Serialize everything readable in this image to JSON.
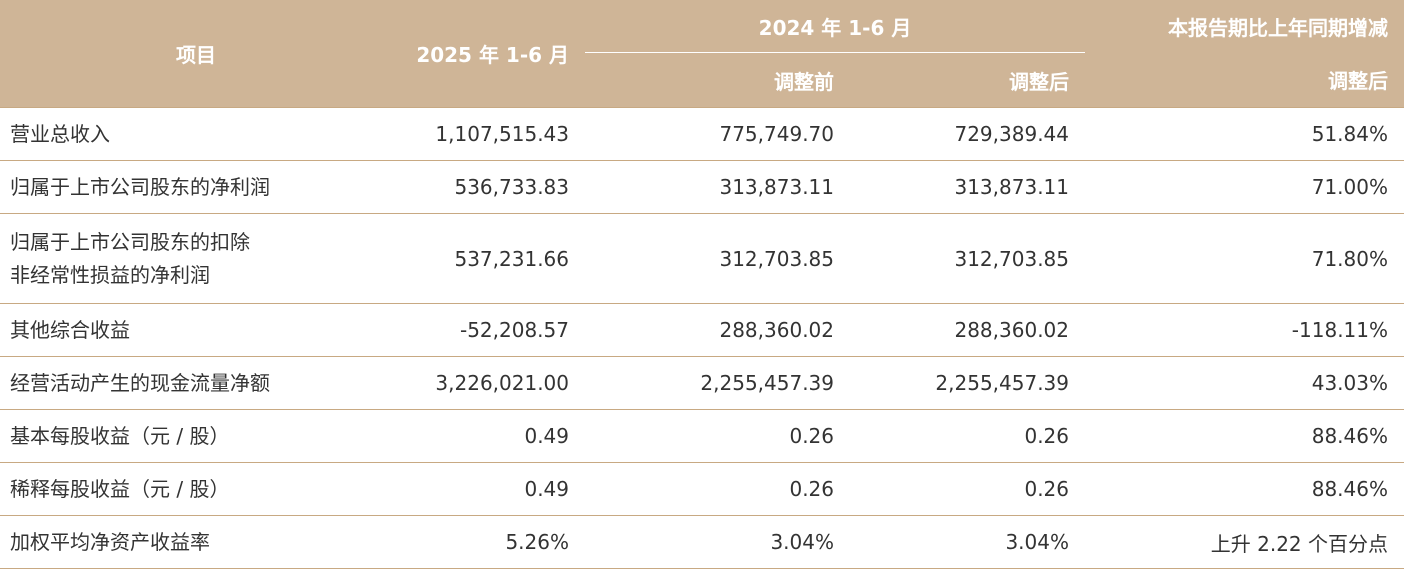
{
  "header": {
    "item": "项目",
    "col_2025": "2025 年 1-6 月",
    "col_2024": "2024 年 1-6 月",
    "col_change": "本报告期比上年同期增减",
    "before_adj": "调整前",
    "after_adj": "调整后",
    "after_adj_change": "调整后"
  },
  "rows": [
    {
      "item": "营业总收入",
      "v2025": "1,107,515.43",
      "v2024_before": "775,749.70",
      "v2024_after": "729,389.44",
      "change": "51.84%"
    },
    {
      "item": "归属于上市公司股东的净利润",
      "v2025": "536,733.83",
      "v2024_before": "313,873.11",
      "v2024_after": "313,873.11",
      "change": "71.00%"
    },
    {
      "item_line1": "归属于上市公司股东的扣除",
      "item_line2": "非经常性损益的净利润",
      "v2025": "537,231.66",
      "v2024_before": "312,703.85",
      "v2024_after": "312,703.85",
      "change": "71.80%"
    },
    {
      "item": "其他综合收益",
      "v2025": "-52,208.57",
      "v2024_before": "288,360.02",
      "v2024_after": "288,360.02",
      "change": "-118.11%"
    },
    {
      "item": "经营活动产生的现金流量净额",
      "v2025": "3,226,021.00",
      "v2024_before": "2,255,457.39",
      "v2024_after": "2,255,457.39",
      "change": "43.03%"
    },
    {
      "item": "基本每股收益（元 / 股）",
      "v2025": "0.49",
      "v2024_before": "0.26",
      "v2024_after": "0.26",
      "change": "88.46%"
    },
    {
      "item": "稀释每股收益（元 / 股）",
      "v2025": "0.49",
      "v2024_before": "0.26",
      "v2024_after": "0.26",
      "change": "88.46%"
    },
    {
      "item": "加权平均净资产收益率",
      "v2025": "5.26%",
      "v2024_before": "3.04%",
      "v2024_after": "3.04%",
      "change": "上升 2.22 个百分点"
    }
  ],
  "colors": {
    "header_bg": "#cfb597",
    "rule": "#c8a983"
  }
}
